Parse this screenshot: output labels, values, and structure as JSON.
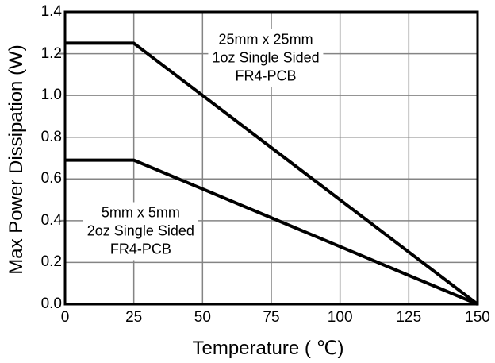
{
  "chart_data": {
    "type": "line",
    "title": "",
    "xlabel": "Temperature ( ℃)",
    "ylabel": "Max Power Dissipation (W)",
    "xlim": [
      0,
      150
    ],
    "ylim": [
      0.0,
      1.4
    ],
    "xticks": [
      0,
      25,
      50,
      75,
      100,
      125,
      150
    ],
    "yticks": [
      0.0,
      0.2,
      0.4,
      0.6,
      0.8,
      1.0,
      1.2,
      1.4
    ],
    "y_tick_decimals": 1,
    "grid": true,
    "legend_position": "none",
    "series": [
      {
        "name": "25mm x 25mm 1oz Single Sided FR4-PCB",
        "x": [
          0,
          25,
          150
        ],
        "y": [
          1.25,
          1.25,
          0.0
        ]
      },
      {
        "name": "5mm x 5mm 2oz Single Sided FR4-PCB",
        "x": [
          0,
          25,
          150
        ],
        "y": [
          0.69,
          0.69,
          0.0
        ]
      }
    ],
    "annotations": [
      {
        "lines": [
          "25mm x 25mm",
          "1oz Single Sided",
          "FR4-PCB"
        ],
        "x": 73,
        "y": 1.18
      },
      {
        "lines": [
          "5mm x 5mm",
          "2oz Single Sided",
          "FR4-PCB"
        ],
        "x": 27.5,
        "y": 0.35
      }
    ],
    "y_outward_tick_values": [
      1.2,
      0.4
    ],
    "colors": {
      "series": "#000000",
      "grid": "#848484",
      "frame": "#000000",
      "text": "#000000",
      "background": "#ffffff"
    }
  }
}
